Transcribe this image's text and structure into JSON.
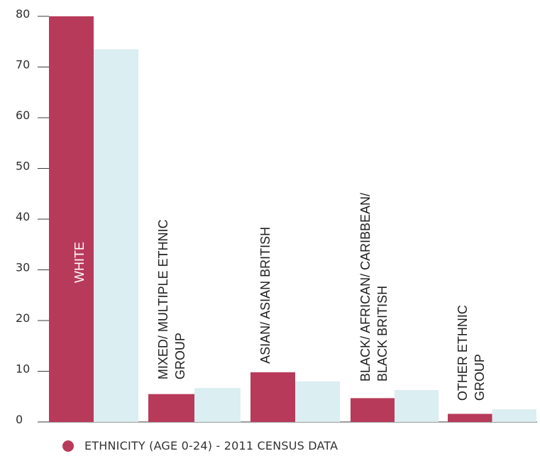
{
  "chart_data": {
    "type": "bar",
    "categories": [
      "WHITE",
      "MIXED/ MULTIPLE ETHNIC GROUP",
      "ASIAN/ ASIAN BRITISH",
      "BLACK/ AFRICAN/ CARIBBEAN/ BLACK BRITISH",
      "OTHER ETHNIC GROUP"
    ],
    "category_label_lines": [
      [
        "WHITE"
      ],
      [
        "MIXED/ MULTIPLE ETHNIC",
        "GROUP"
      ],
      [
        "ASIAN/ ASIAN BRITISH"
      ],
      [
        "BLACK/ AFRICAN/ CARIBBEAN/",
        "BLACK BRITISH"
      ],
      [
        "OTHER ETHNIC",
        "GROUP"
      ]
    ],
    "series": [
      {
        "name": "ETHNICITY (AGE 0-24) - 2011 CENSUS DATA",
        "color": "#b83a5a",
        "values": [
          80,
          5.5,
          9.8,
          4.7,
          1.6
        ]
      },
      {
        "name": "",
        "color": "#dbeef1",
        "values": [
          73.5,
          6.7,
          8.0,
          6.3,
          2.5
        ]
      }
    ],
    "yticks": [
      0,
      10,
      20,
      30,
      40,
      50,
      60,
      70,
      80
    ],
    "ylim": [
      0,
      80
    ],
    "grid": false,
    "legend_position": "bottom-left",
    "title": "",
    "xlabel": "",
    "ylabel": ""
  }
}
